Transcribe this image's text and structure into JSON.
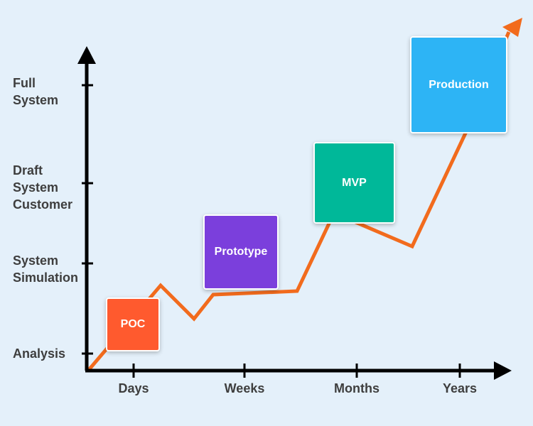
{
  "y_levels": [
    {
      "label": "Full\nSystem"
    },
    {
      "label": "Draft\nSystem\nCustomer"
    },
    {
      "label": "System\nSimulation"
    },
    {
      "label": "Analysis"
    }
  ],
  "x_categories": [
    "Days",
    "Weeks",
    "Months",
    "Years"
  ],
  "stages": [
    {
      "label": "POC",
      "color": "#ff5a2e"
    },
    {
      "label": "Prototype",
      "color": "#7b3fdc"
    },
    {
      "label": "MVP",
      "color": "#00b899"
    },
    {
      "label": "Production",
      "color": "#2db4f5"
    }
  ],
  "colors": {
    "axis": "#000000",
    "trend_line": "#f26b1d",
    "background": "#e4f0fa",
    "text": "#3e3e3e"
  }
}
